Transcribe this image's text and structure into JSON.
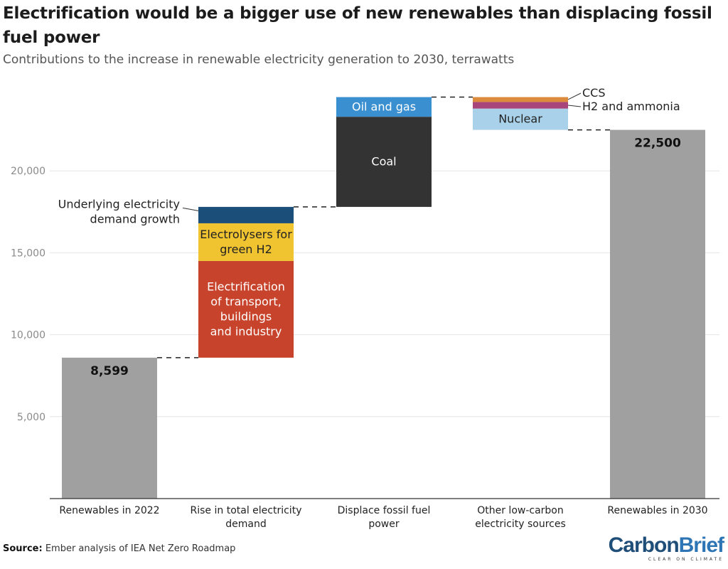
{
  "title": "Electrification would be a bigger use of new renewables than displacing fossil fuel power",
  "subtitle": "Contributions to the increase in renewable electricity generation to 2030, terrawatts",
  "source_label": "Source:",
  "source_text": "Ember analysis of IEA Net Zero Roadmap",
  "logo": {
    "carbon": "Carbon",
    "brief": "Brief",
    "tagline": "CLEAR ON CLIMATE"
  },
  "chart_data": {
    "type": "waterfall",
    "title": "Electrification would be a bigger use of new renewables than displacing fossil fuel power",
    "subtitle": "Contributions to the increase in renewable electricity generation to 2030, terrawatts",
    "ylim": [
      0,
      25000
    ],
    "yticks": [
      5000,
      10000,
      15000,
      20000
    ],
    "ytick_labels": [
      "5,000",
      "10,000",
      "15,000",
      "20,000"
    ],
    "categories": [
      [
        "Renewables in 2022"
      ],
      [
        "Rise in total electricity",
        "demand"
      ],
      [
        "Displace fossil fuel",
        "power"
      ],
      [
        "Other low-carbon",
        "electricity sources"
      ],
      [
        "Renewables in 2030"
      ]
    ],
    "totals": [
      {
        "category": 0,
        "value": 8599,
        "label": "8,599",
        "color": "#a0a0a0"
      },
      {
        "category": 4,
        "value": 22500,
        "label": "22,500",
        "color": "#a0a0a0"
      }
    ],
    "segments": [
      {
        "category": 1,
        "start": 8599,
        "end": 14500,
        "name": "Electrification of transport, buildings and industry",
        "label_lines": [
          "Electrification",
          "of transport,",
          "buildings",
          "and industry"
        ],
        "color": "#c8432b",
        "text_color": "#ffffff",
        "label": "inside"
      },
      {
        "category": 1,
        "start": 14500,
        "end": 16800,
        "name": "Electrolysers for green H2",
        "label_lines": [
          "Electrolysers for",
          "green H2"
        ],
        "color": "#f0c330",
        "text_color": "#222222",
        "label": "inside"
      },
      {
        "category": 1,
        "start": 16800,
        "end": 17800,
        "name": "Underlying electricity demand growth",
        "label_lines": [
          "Underlying electricity",
          "demand growth"
        ],
        "color": "#1b4f7a",
        "text_color": "#222222",
        "label": "left"
      },
      {
        "category": 2,
        "start": 17800,
        "end": 23300,
        "name": "Coal",
        "label_lines": [
          "Coal"
        ],
        "color": "#333333",
        "text_color": "#ffffff",
        "label": "inside"
      },
      {
        "category": 2,
        "start": 23300,
        "end": 24500,
        "name": "Oil and gas",
        "label_lines": [
          "Oil and gas"
        ],
        "color": "#3a8fd0",
        "text_color": "#ffffff",
        "label": "inside"
      },
      {
        "category": 3,
        "start": 22500,
        "end": 23800,
        "name": "Nuclear",
        "label_lines": [
          "Nuclear"
        ],
        "color": "#a9d2ea",
        "text_color": "#222222",
        "label": "inside"
      },
      {
        "category": 3,
        "start": 23800,
        "end": 24200,
        "name": "H2 and ammonia",
        "label_lines": [
          "H2 and ammonia"
        ],
        "color": "#a8457a",
        "text_color": "#222222",
        "label": "right"
      },
      {
        "category": 3,
        "start": 24200,
        "end": 24500,
        "name": "CCS",
        "label_lines": [
          "CCS"
        ],
        "color": "#dc8a3c",
        "text_color": "#222222",
        "label": "right"
      }
    ],
    "connectors": [
      {
        "from": 0,
        "to": 1,
        "value": 8599
      },
      {
        "from": 1,
        "to": 2,
        "value": 17800
      },
      {
        "from": 2,
        "to": 3,
        "value": 24500
      },
      {
        "from": 3,
        "to": 4,
        "value": 22500
      }
    ],
    "grid": true,
    "legend": "none"
  }
}
